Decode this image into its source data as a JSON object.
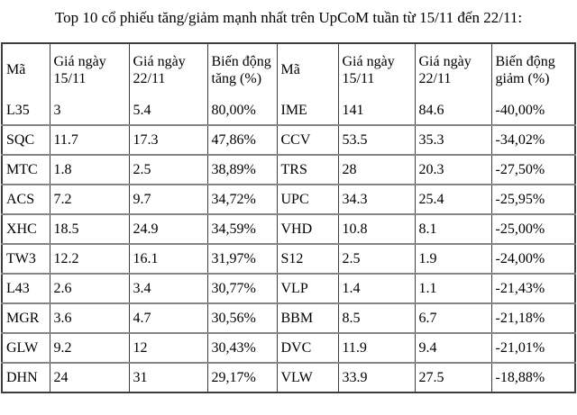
{
  "title": "Top 10 cổ phiếu tăng/giảm mạnh nhất trên UpCoM tuần từ 15/11 đến 22/11:",
  "table": {
    "headers": [
      "Mã",
      "Giá ngày 15/11",
      "Giá ngày 22/11",
      "Biến động tăng (%)",
      "Mã",
      "Giá ngày 15/11",
      "Giá ngày 22/11",
      "Biến động giảm (%)"
    ],
    "rows": [
      [
        "L35",
        "3",
        "5.4",
        "80,00%",
        "IME",
        "141",
        "84.6",
        "-40,00%"
      ],
      [
        "SQC",
        "11.7",
        "17.3",
        "47,86%",
        "CCV",
        "53.5",
        "35.3",
        "-34,02%"
      ],
      [
        "MTC",
        "1.8",
        "2.5",
        "38,89%",
        "TRS",
        "28",
        "20.3",
        "-27,50%"
      ],
      [
        "ACS",
        "7.2",
        "9.7",
        "34,72%",
        "UPC",
        "34.3",
        "25.4",
        "-25,95%"
      ],
      [
        "XHC",
        "18.5",
        "24.9",
        "34,59%",
        "VHD",
        "10.8",
        "8.1",
        "-25,00%"
      ],
      [
        "TW3",
        "12.2",
        "16.1",
        "31,97%",
        "S12",
        "2.5",
        "1.9",
        "-24,00%"
      ],
      [
        "L43",
        "2.6",
        "3.4",
        "30,77%",
        "VLP",
        "1.4",
        "1.1",
        "-21,43%"
      ],
      [
        "MGR",
        "3.6",
        "4.7",
        "30,56%",
        "BBM",
        "8.5",
        "6.7",
        "-21,18%"
      ],
      [
        "GLW",
        "9.2",
        "12",
        "30,43%",
        "DVC",
        "11.9",
        "9.4",
        "-21,01%"
      ],
      [
        "DHN",
        "24",
        "31",
        "29,17%",
        "VLW",
        "33.9",
        "27.5",
        "-18,88%"
      ]
    ]
  },
  "colors": {
    "text": "#000000",
    "background": "#ffffff",
    "border_dark": "#3d3d3d",
    "border_light": "#848484"
  }
}
